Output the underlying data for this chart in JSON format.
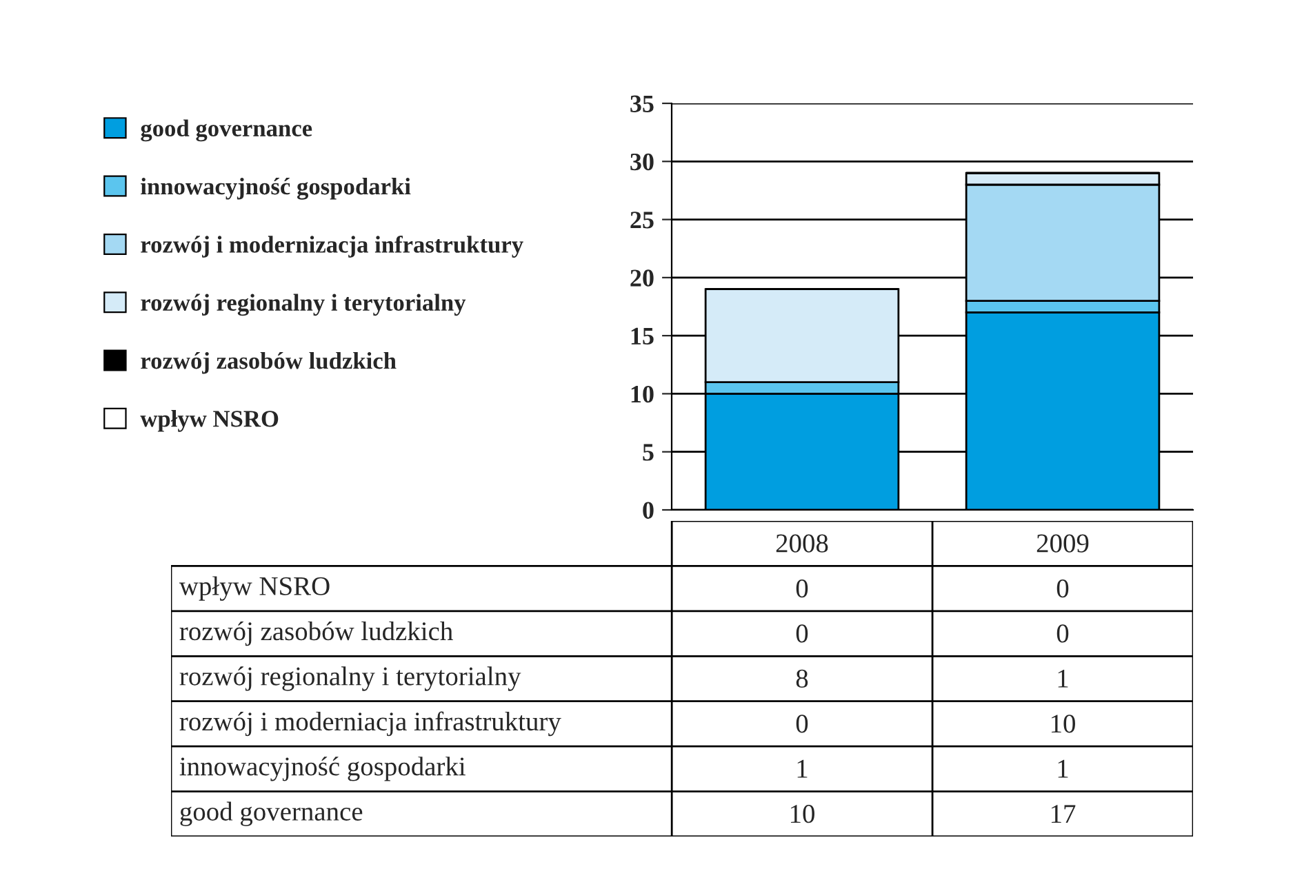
{
  "chart_data": {
    "type": "bar",
    "stacked": true,
    "categories": [
      "2008",
      "2009"
    ],
    "series": [
      {
        "name": "good governance",
        "color": "#009ee0",
        "values": [
          10,
          17
        ],
        "value_labels": [
          "10",
          "17"
        ]
      },
      {
        "name": "innowacyjność gospodarki",
        "color": "#5bc5ee",
        "values": [
          1,
          1
        ],
        "value_labels": [
          "1",
          "1"
        ]
      },
      {
        "name": "rozwój i modernizacja infrastruktury",
        "color": "#a4d9f3",
        "values": [
          0,
          10
        ],
        "value_labels": [
          "0",
          "10"
        ]
      },
      {
        "name": "rozwój regionalny i terytorialny",
        "color": "#d5ebf8",
        "values": [
          8,
          1
        ],
        "value_labels": [
          "8",
          "1"
        ]
      },
      {
        "name": "rozwój zasobów ludzkich",
        "color": "#000000",
        "values": [
          0,
          0
        ],
        "value_labels": [
          "0",
          "0"
        ]
      },
      {
        "name": "wpływ NSRO",
        "color": "#ffffff",
        "values": [
          0,
          0
        ],
        "value_labels": [
          "0",
          "0"
        ]
      }
    ],
    "annotations": [
      "wpływ NSRO",
      "rozwój zasobów ludzkich",
      "rozwój regionalny i terytorialny",
      "rozwój i moderniacja infrastruktury",
      "innowacyjność gospodarki",
      "good governance"
    ],
    "ylim": [
      0,
      35
    ],
    "yticks": [
      0,
      5,
      10,
      15,
      20,
      25,
      30,
      35
    ],
    "grid": "y",
    "legend": "left"
  }
}
